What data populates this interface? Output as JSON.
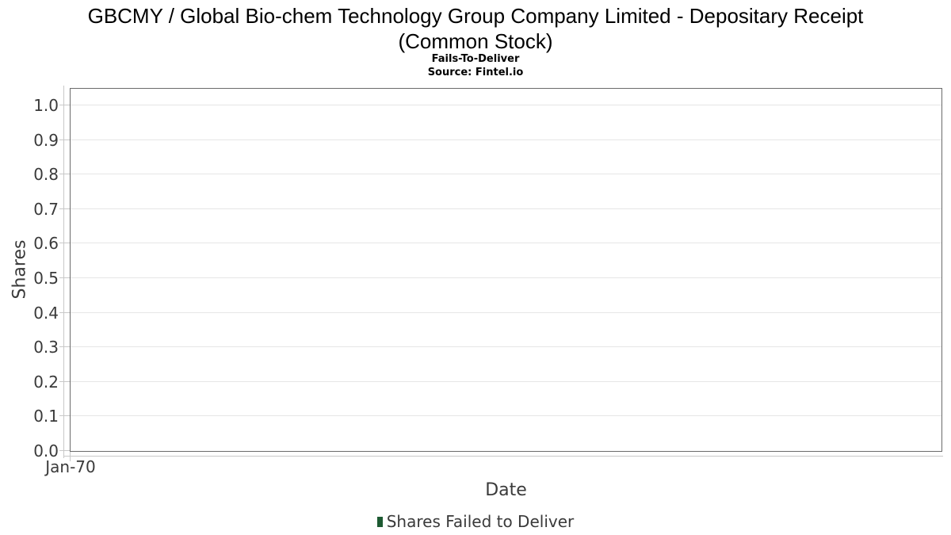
{
  "header": {
    "title_line1": "GBCMY / Global Bio-chem Technology Group Company Limited - Depositary Receipt",
    "title_line2": "(Common Stock)",
    "subtitle": "Fails-To-Deliver",
    "source": "Source: Fintel.io"
  },
  "chart_data": {
    "type": "bar",
    "title": "GBCMY / Global Bio-chem Technology Group Company Limited - Depositary Receipt (Common Stock)",
    "subtitle": "Fails-To-Deliver",
    "source": "Source: Fintel.io",
    "xlabel": "Date",
    "ylabel": "Shares",
    "xticks": [
      "Jan-70"
    ],
    "yticks": [
      0.0,
      0.1,
      0.2,
      0.3,
      0.4,
      0.5,
      0.6,
      0.7,
      0.8,
      0.9,
      1.0
    ],
    "ylim": [
      0,
      1.048
    ],
    "grid": "horizontal-only",
    "legend_position": "bottom-center",
    "series": [
      {
        "name": "Shares Failed to Deliver",
        "color": "#1d5a32",
        "x": [],
        "values": []
      }
    ]
  },
  "colors": {
    "background": "#ffffff",
    "title_text": "#000000",
    "axis_text": "#3a3a3a",
    "plot_border": "#6b6b6b",
    "gridline": "#e6e6e6",
    "axis_line": "#c8c8c8",
    "legend_marker": "#1d5a32"
  }
}
